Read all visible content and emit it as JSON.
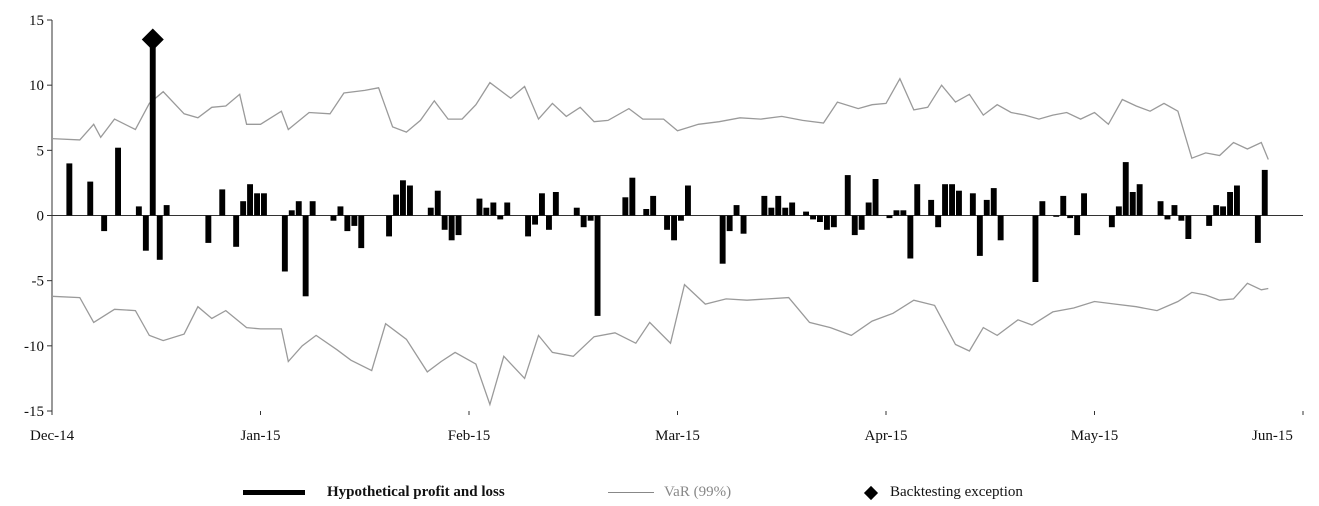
{
  "chart_data": {
    "type": "bar",
    "title": "",
    "xlabel": "",
    "ylabel": "",
    "ylim": [
      -15,
      15
    ],
    "y_ticks": [
      "15",
      "10",
      "5",
      "0",
      "-5",
      "-10",
      "-15"
    ],
    "x_tick_labels": [
      "Dec-14",
      "Jan-15",
      "Feb-15",
      "Mar-15",
      "Apr-15",
      "May-15",
      "Jun-15"
    ],
    "n_days": 180,
    "pnl": {
      "name": "Hypothetical profit and loss",
      "values": [
        {
          "x": 2,
          "y": 4.0
        },
        {
          "x": 5,
          "y": 2.6
        },
        {
          "x": 7,
          "y": -1.2
        },
        {
          "x": 9,
          "y": 5.2
        },
        {
          "x": 12,
          "y": 0.7
        },
        {
          "x": 13,
          "y": -2.7
        },
        {
          "x": 14,
          "y": 13.5
        },
        {
          "x": 15,
          "y": -3.4
        },
        {
          "x": 16,
          "y": 0.8
        },
        {
          "x": 22,
          "y": -2.1
        },
        {
          "x": 24,
          "y": 2.0
        },
        {
          "x": 26,
          "y": -2.4
        },
        {
          "x": 27,
          "y": 1.1
        },
        {
          "x": 28,
          "y": 2.4
        },
        {
          "x": 29,
          "y": 1.7
        },
        {
          "x": 30,
          "y": 1.7
        },
        {
          "x": 33,
          "y": -4.3
        },
        {
          "x": 34,
          "y": 0.4
        },
        {
          "x": 35,
          "y": 1.1
        },
        {
          "x": 36,
          "y": -6.2
        },
        {
          "x": 37,
          "y": 1.1
        },
        {
          "x": 40,
          "y": -0.4
        },
        {
          "x": 41,
          "y": 0.7
        },
        {
          "x": 42,
          "y": -1.2
        },
        {
          "x": 43,
          "y": -0.8
        },
        {
          "x": 44,
          "y": -2.5
        },
        {
          "x": 48,
          "y": -1.6
        },
        {
          "x": 49,
          "y": 1.6
        },
        {
          "x": 50,
          "y": 2.7
        },
        {
          "x": 51,
          "y": 2.3
        },
        {
          "x": 54,
          "y": 0.6
        },
        {
          "x": 55,
          "y": 1.9
        },
        {
          "x": 56,
          "y": -1.1
        },
        {
          "x": 57,
          "y": -1.9
        },
        {
          "x": 58,
          "y": -1.5
        },
        {
          "x": 61,
          "y": 1.3
        },
        {
          "x": 62,
          "y": 0.6
        },
        {
          "x": 63,
          "y": 1.0
        },
        {
          "x": 64,
          "y": -0.3
        },
        {
          "x": 65,
          "y": 1.0
        },
        {
          "x": 68,
          "y": -1.6
        },
        {
          "x": 69,
          "y": -0.7
        },
        {
          "x": 70,
          "y": 1.7
        },
        {
          "x": 71,
          "y": -1.1
        },
        {
          "x": 72,
          "y": 1.8
        },
        {
          "x": 75,
          "y": 0.6
        },
        {
          "x": 76,
          "y": -0.9
        },
        {
          "x": 77,
          "y": -0.4
        },
        {
          "x": 78,
          "y": -7.7
        },
        {
          "x": 82,
          "y": 1.4
        },
        {
          "x": 83,
          "y": 2.9
        },
        {
          "x": 85,
          "y": 0.5
        },
        {
          "x": 86,
          "y": 1.5
        },
        {
          "x": 88,
          "y": -1.1
        },
        {
          "x": 89,
          "y": -1.9
        },
        {
          "x": 90,
          "y": -0.4
        },
        {
          "x": 91,
          "y": 2.3
        },
        {
          "x": 96,
          "y": -3.7
        },
        {
          "x": 97,
          "y": -1.2
        },
        {
          "x": 98,
          "y": 0.8
        },
        {
          "x": 99,
          "y": -1.4
        },
        {
          "x": 102,
          "y": 1.5
        },
        {
          "x": 103,
          "y": 0.6
        },
        {
          "x": 104,
          "y": 1.5
        },
        {
          "x": 105,
          "y": 0.6
        },
        {
          "x": 106,
          "y": 1.0
        },
        {
          "x": 108,
          "y": 0.3
        },
        {
          "x": 109,
          "y": -0.3
        },
        {
          "x": 110,
          "y": -0.5
        },
        {
          "x": 111,
          "y": -1.1
        },
        {
          "x": 112,
          "y": -0.9
        },
        {
          "x": 114,
          "y": 3.1
        },
        {
          "x": 115,
          "y": -1.5
        },
        {
          "x": 116,
          "y": -1.1
        },
        {
          "x": 117,
          "y": 1.0
        },
        {
          "x": 118,
          "y": 2.8
        },
        {
          "x": 120,
          "y": -0.2
        },
        {
          "x": 121,
          "y": 0.4
        },
        {
          "x": 122,
          "y": 0.4
        },
        {
          "x": 123,
          "y": -3.3
        },
        {
          "x": 124,
          "y": 2.4
        },
        {
          "x": 126,
          "y": 1.2
        },
        {
          "x": 127,
          "y": -0.9
        },
        {
          "x": 128,
          "y": 2.4
        },
        {
          "x": 129,
          "y": 2.4
        },
        {
          "x": 130,
          "y": 1.9
        },
        {
          "x": 132,
          "y": 1.7
        },
        {
          "x": 133,
          "y": -3.1
        },
        {
          "x": 134,
          "y": 1.2
        },
        {
          "x": 135,
          "y": 2.1
        },
        {
          "x": 136,
          "y": -1.9
        },
        {
          "x": 141,
          "y": -5.1
        },
        {
          "x": 142,
          "y": 1.1
        },
        {
          "x": 144,
          "y": -0.1
        },
        {
          "x": 145,
          "y": 1.5
        },
        {
          "x": 146,
          "y": -0.2
        },
        {
          "x": 147,
          "y": -1.5
        },
        {
          "x": 148,
          "y": 1.7
        },
        {
          "x": 152,
          "y": -0.9
        },
        {
          "x": 153,
          "y": 0.7
        },
        {
          "x": 154,
          "y": 4.1
        },
        {
          "x": 155,
          "y": 1.8
        },
        {
          "x": 156,
          "y": 2.4
        },
        {
          "x": 159,
          "y": 1.1
        },
        {
          "x": 160,
          "y": -0.3
        },
        {
          "x": 161,
          "y": 0.8
        },
        {
          "x": 162,
          "y": -0.4
        },
        {
          "x": 163,
          "y": -1.8
        },
        {
          "x": 166,
          "y": -0.8
        },
        {
          "x": 167,
          "y": 0.8
        },
        {
          "x": 168,
          "y": 0.7
        },
        {
          "x": 169,
          "y": 1.8
        },
        {
          "x": 170,
          "y": 2.3
        },
        {
          "x": 173,
          "y": -2.1
        },
        {
          "x": 174,
          "y": 3.5
        }
      ]
    },
    "var_series": {
      "name": "VaR (99%)",
      "upper": [
        [
          0,
          5.9
        ],
        [
          4,
          5.8
        ],
        [
          6,
          7.0
        ],
        [
          7,
          6.0
        ],
        [
          9,
          7.4
        ],
        [
          12,
          6.6
        ],
        [
          14,
          8.6
        ],
        [
          16,
          9.5
        ],
        [
          19,
          7.8
        ],
        [
          21,
          7.5
        ],
        [
          23,
          8.3
        ],
        [
          25,
          8.4
        ],
        [
          27,
          9.3
        ],
        [
          28,
          7.0
        ],
        [
          30,
          7.0
        ],
        [
          33,
          8.0
        ],
        [
          34,
          6.6
        ],
        [
          37,
          7.9
        ],
        [
          40,
          7.8
        ],
        [
          42,
          9.4
        ],
        [
          45,
          9.6
        ],
        [
          47,
          9.8
        ],
        [
          49,
          6.8
        ],
        [
          51,
          6.4
        ],
        [
          53,
          7.3
        ],
        [
          55,
          8.8
        ],
        [
          57,
          7.4
        ],
        [
          59,
          7.4
        ],
        [
          61,
          8.5
        ],
        [
          63,
          10.2
        ],
        [
          66,
          9.0
        ],
        [
          68,
          9.9
        ],
        [
          70,
          7.4
        ],
        [
          72,
          8.6
        ],
        [
          74,
          7.6
        ],
        [
          76,
          8.3
        ],
        [
          78,
          7.2
        ],
        [
          80,
          7.3
        ],
        [
          83,
          8.2
        ],
        [
          85,
          7.4
        ],
        [
          88,
          7.4
        ],
        [
          90,
          6.5
        ],
        [
          93,
          7.0
        ],
        [
          96,
          7.2
        ],
        [
          99,
          7.5
        ],
        [
          102,
          7.4
        ],
        [
          105,
          7.6
        ],
        [
          108,
          7.3
        ],
        [
          111,
          7.1
        ],
        [
          113,
          8.7
        ],
        [
          116,
          8.2
        ],
        [
          118,
          8.5
        ],
        [
          120,
          8.6
        ],
        [
          122,
          10.5
        ],
        [
          124,
          8.1
        ],
        [
          126,
          8.3
        ],
        [
          128,
          10.0
        ],
        [
          130,
          8.7
        ],
        [
          132,
          9.3
        ],
        [
          134,
          7.7
        ],
        [
          136,
          8.5
        ],
        [
          138,
          7.9
        ],
        [
          140,
          7.7
        ],
        [
          142,
          7.4
        ],
        [
          144,
          7.7
        ],
        [
          146,
          7.9
        ],
        [
          148,
          7.4
        ],
        [
          150,
          7.9
        ],
        [
          152,
          7.0
        ],
        [
          154,
          8.9
        ],
        [
          156,
          8.4
        ],
        [
          158,
          8.0
        ],
        [
          160,
          8.6
        ],
        [
          162,
          8.0
        ],
        [
          164,
          4.4
        ],
        [
          166,
          4.8
        ],
        [
          168,
          4.6
        ],
        [
          170,
          5.6
        ],
        [
          172,
          5.1
        ],
        [
          174,
          5.6
        ],
        [
          175,
          4.3
        ]
      ],
      "lower": [
        [
          0,
          -6.2
        ],
        [
          4,
          -6.3
        ],
        [
          6,
          -8.2
        ],
        [
          9,
          -7.2
        ],
        [
          12,
          -7.3
        ],
        [
          14,
          -9.2
        ],
        [
          16,
          -9.6
        ],
        [
          19,
          -9.1
        ],
        [
          21,
          -7.0
        ],
        [
          23,
          -7.9
        ],
        [
          25,
          -7.3
        ],
        [
          28,
          -8.6
        ],
        [
          30,
          -8.7
        ],
        [
          33,
          -8.7
        ],
        [
          34,
          -11.2
        ],
        [
          36,
          -10.0
        ],
        [
          38,
          -9.2
        ],
        [
          41,
          -10.3
        ],
        [
          43,
          -11.1
        ],
        [
          46,
          -11.9
        ],
        [
          48,
          -8.3
        ],
        [
          51,
          -9.5
        ],
        [
          54,
          -12.0
        ],
        [
          56,
          -11.2
        ],
        [
          58,
          -10.5
        ],
        [
          61,
          -11.4
        ],
        [
          63,
          -14.5
        ],
        [
          65,
          -10.8
        ],
        [
          68,
          -12.5
        ],
        [
          70,
          -9.2
        ],
        [
          72,
          -10.5
        ],
        [
          75,
          -10.8
        ],
        [
          78,
          -9.3
        ],
        [
          81,
          -9.0
        ],
        [
          84,
          -9.8
        ],
        [
          86,
          -8.2
        ],
        [
          89,
          -9.8
        ],
        [
          91,
          -5.3
        ],
        [
          94,
          -6.8
        ],
        [
          97,
          -6.4
        ],
        [
          100,
          -6.5
        ],
        [
          103,
          -6.4
        ],
        [
          106,
          -6.3
        ],
        [
          109,
          -8.2
        ],
        [
          112,
          -8.6
        ],
        [
          115,
          -9.2
        ],
        [
          118,
          -8.1
        ],
        [
          121,
          -7.5
        ],
        [
          124,
          -6.5
        ],
        [
          127,
          -6.9
        ],
        [
          130,
          -9.9
        ],
        [
          132,
          -10.4
        ],
        [
          134,
          -8.6
        ],
        [
          136,
          -9.2
        ],
        [
          139,
          -8.0
        ],
        [
          141,
          -8.4
        ],
        [
          144,
          -7.4
        ],
        [
          147,
          -7.1
        ],
        [
          150,
          -6.6
        ],
        [
          153,
          -6.8
        ],
        [
          156,
          -7.0
        ],
        [
          159,
          -7.3
        ],
        [
          162,
          -6.6
        ],
        [
          164,
          -5.9
        ],
        [
          166,
          -6.1
        ],
        [
          168,
          -6.5
        ],
        [
          170,
          -6.4
        ],
        [
          172,
          -5.2
        ],
        [
          174,
          -5.7
        ],
        [
          175,
          -5.6
        ]
      ]
    },
    "exceptions": {
      "name": "Backtesting exception",
      "points": [
        {
          "x": 14,
          "y": 13.5
        }
      ]
    },
    "legend": [
      {
        "label": "Hypothetical profit and loss",
        "style": "thick-bar"
      },
      {
        "label": "VaR (99%)",
        "style": "thin-line"
      },
      {
        "label": "Backtesting exception",
        "style": "diamond"
      }
    ],
    "legend_position": "bottom",
    "grid": false,
    "colors": {
      "bars": "#000000",
      "var_line": "#9a9a9a",
      "axis": "#333333",
      "exception": "#000000"
    }
  }
}
